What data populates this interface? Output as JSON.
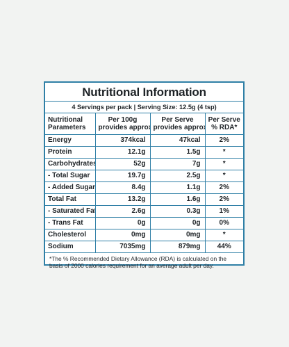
{
  "label": {
    "title": "Nutritional Information",
    "subtitle": "4 Servings per pack  |  Serving Size: 12.5g (4 tsp)",
    "headers": {
      "col1_line1": "Nutritional",
      "col1_line2": "Parameters",
      "col2_line1": "Per 100g",
      "col2_line2": "provides approx.",
      "col3_line1": "Per Serve",
      "col3_line2": "provides approx.",
      "col4_line1": "Per Serve",
      "col4_line2": "% RDA*"
    },
    "rows": [
      {
        "name": "Energy",
        "per100": "374kcal",
        "serve": "47kcal",
        "rda": "2%"
      },
      {
        "name": "Protein",
        "per100": "12.1g",
        "serve": "1.5g",
        "rda": "*"
      },
      {
        "name": "Carbohydrates",
        "per100": "52g",
        "serve": "7g",
        "rda": "*"
      },
      {
        "name": "- Total Sugar",
        "per100": "19.7g",
        "serve": "2.5g",
        "rda": "*"
      },
      {
        "name": "- Added Sugar",
        "per100": "8.4g",
        "serve": "1.1g",
        "rda": "2%"
      },
      {
        "name": "Total Fat",
        "per100": "13.2g",
        "serve": "1.6g",
        "rda": "2%"
      },
      {
        "name": "- Saturated Fat",
        "per100": "2.6g",
        "serve": "0.3g",
        "rda": "1%"
      },
      {
        "name": "- Trans Fat",
        "per100": "0g",
        "serve": "0g",
        "rda": "0%"
      },
      {
        "name": "Cholesterol",
        "per100": "0mg",
        "serve": "0mg",
        "rda": "*"
      },
      {
        "name": "Sodium",
        "per100": "7035mg",
        "serve": "879mg",
        "rda": "44%"
      }
    ],
    "footnote": "*The % Recommended Dietary Allowance (RDA) is calculated on the basis of 2000 calories requirement for an average adult per day."
  },
  "colors": {
    "border": "#2f7fa6",
    "text": "#1d2226",
    "background": "#f2f3f2",
    "panel": "#ffffff"
  }
}
